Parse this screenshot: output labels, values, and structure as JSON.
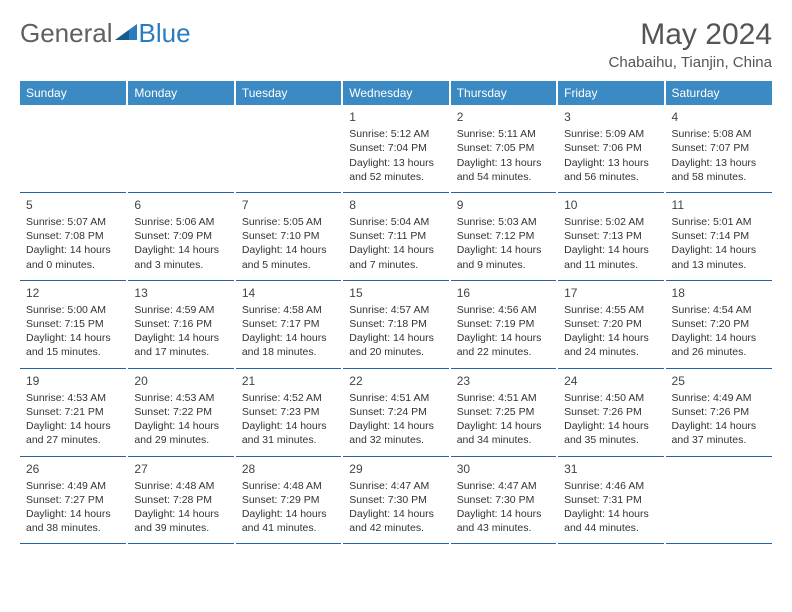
{
  "brand": {
    "part1": "General",
    "part2": "Blue"
  },
  "title": "May 2024",
  "location": "Chabaihu, Tianjin, China",
  "dayHeaders": [
    "Sunday",
    "Monday",
    "Tuesday",
    "Wednesday",
    "Thursday",
    "Friday",
    "Saturday"
  ],
  "colors": {
    "headerBg": "#3b8ac4",
    "headerText": "#ffffff",
    "rowBorder": "#2563a0",
    "bodyText": "#333333",
    "titleText": "#555555"
  },
  "weeks": [
    [
      null,
      null,
      null,
      {
        "d": "1",
        "sr": "5:12 AM",
        "ss": "7:04 PM",
        "dl": "13 hours and 52 minutes."
      },
      {
        "d": "2",
        "sr": "5:11 AM",
        "ss": "7:05 PM",
        "dl": "13 hours and 54 minutes."
      },
      {
        "d": "3",
        "sr": "5:09 AM",
        "ss": "7:06 PM",
        "dl": "13 hours and 56 minutes."
      },
      {
        "d": "4",
        "sr": "5:08 AM",
        "ss": "7:07 PM",
        "dl": "13 hours and 58 minutes."
      }
    ],
    [
      {
        "d": "5",
        "sr": "5:07 AM",
        "ss": "7:08 PM",
        "dl": "14 hours and 0 minutes."
      },
      {
        "d": "6",
        "sr": "5:06 AM",
        "ss": "7:09 PM",
        "dl": "14 hours and 3 minutes."
      },
      {
        "d": "7",
        "sr": "5:05 AM",
        "ss": "7:10 PM",
        "dl": "14 hours and 5 minutes."
      },
      {
        "d": "8",
        "sr": "5:04 AM",
        "ss": "7:11 PM",
        "dl": "14 hours and 7 minutes."
      },
      {
        "d": "9",
        "sr": "5:03 AM",
        "ss": "7:12 PM",
        "dl": "14 hours and 9 minutes."
      },
      {
        "d": "10",
        "sr": "5:02 AM",
        "ss": "7:13 PM",
        "dl": "14 hours and 11 minutes."
      },
      {
        "d": "11",
        "sr": "5:01 AM",
        "ss": "7:14 PM",
        "dl": "14 hours and 13 minutes."
      }
    ],
    [
      {
        "d": "12",
        "sr": "5:00 AM",
        "ss": "7:15 PM",
        "dl": "14 hours and 15 minutes."
      },
      {
        "d": "13",
        "sr": "4:59 AM",
        "ss": "7:16 PM",
        "dl": "14 hours and 17 minutes."
      },
      {
        "d": "14",
        "sr": "4:58 AM",
        "ss": "7:17 PM",
        "dl": "14 hours and 18 minutes."
      },
      {
        "d": "15",
        "sr": "4:57 AM",
        "ss": "7:18 PM",
        "dl": "14 hours and 20 minutes."
      },
      {
        "d": "16",
        "sr": "4:56 AM",
        "ss": "7:19 PM",
        "dl": "14 hours and 22 minutes."
      },
      {
        "d": "17",
        "sr": "4:55 AM",
        "ss": "7:20 PM",
        "dl": "14 hours and 24 minutes."
      },
      {
        "d": "18",
        "sr": "4:54 AM",
        "ss": "7:20 PM",
        "dl": "14 hours and 26 minutes."
      }
    ],
    [
      {
        "d": "19",
        "sr": "4:53 AM",
        "ss": "7:21 PM",
        "dl": "14 hours and 27 minutes."
      },
      {
        "d": "20",
        "sr": "4:53 AM",
        "ss": "7:22 PM",
        "dl": "14 hours and 29 minutes."
      },
      {
        "d": "21",
        "sr": "4:52 AM",
        "ss": "7:23 PM",
        "dl": "14 hours and 31 minutes."
      },
      {
        "d": "22",
        "sr": "4:51 AM",
        "ss": "7:24 PM",
        "dl": "14 hours and 32 minutes."
      },
      {
        "d": "23",
        "sr": "4:51 AM",
        "ss": "7:25 PM",
        "dl": "14 hours and 34 minutes."
      },
      {
        "d": "24",
        "sr": "4:50 AM",
        "ss": "7:26 PM",
        "dl": "14 hours and 35 minutes."
      },
      {
        "d": "25",
        "sr": "4:49 AM",
        "ss": "7:26 PM",
        "dl": "14 hours and 37 minutes."
      }
    ],
    [
      {
        "d": "26",
        "sr": "4:49 AM",
        "ss": "7:27 PM",
        "dl": "14 hours and 38 minutes."
      },
      {
        "d": "27",
        "sr": "4:48 AM",
        "ss": "7:28 PM",
        "dl": "14 hours and 39 minutes."
      },
      {
        "d": "28",
        "sr": "4:48 AM",
        "ss": "7:29 PM",
        "dl": "14 hours and 41 minutes."
      },
      {
        "d": "29",
        "sr": "4:47 AM",
        "ss": "7:30 PM",
        "dl": "14 hours and 42 minutes."
      },
      {
        "d": "30",
        "sr": "4:47 AM",
        "ss": "7:30 PM",
        "dl": "14 hours and 43 minutes."
      },
      {
        "d": "31",
        "sr": "4:46 AM",
        "ss": "7:31 PM",
        "dl": "14 hours and 44 minutes."
      },
      null
    ]
  ],
  "labels": {
    "sunrise": "Sunrise: ",
    "sunset": "Sunset: ",
    "daylight": "Daylight: "
  }
}
